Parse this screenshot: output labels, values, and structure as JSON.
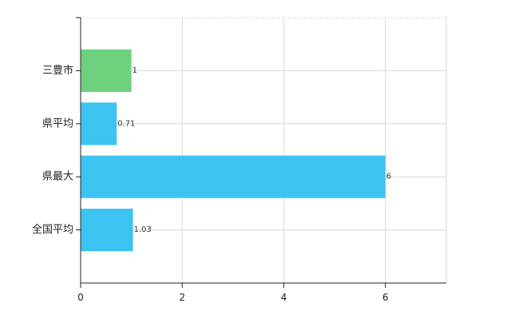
{
  "chart_data": {
    "type": "bar",
    "orientation": "horizontal",
    "categories": [
      "三豊市",
      "県平均",
      "県最大",
      "全国平均"
    ],
    "values": [
      1,
      0.71,
      6,
      1.03
    ],
    "value_labels": [
      "1",
      "0.71",
      "6",
      "1.03"
    ],
    "bar_colors": [
      "#6dd17e",
      "#3cc3f2",
      "#3cc3f2",
      "#3cc3f2"
    ],
    "xlim": [
      0,
      7.2
    ],
    "xticks": [
      0,
      2,
      4,
      6
    ],
    "xtick_labels": [
      "0",
      "2",
      "4",
      "6"
    ],
    "grid": true,
    "grid_color": "#d9d9d9",
    "axis_color": "#222222",
    "legend": "none"
  }
}
